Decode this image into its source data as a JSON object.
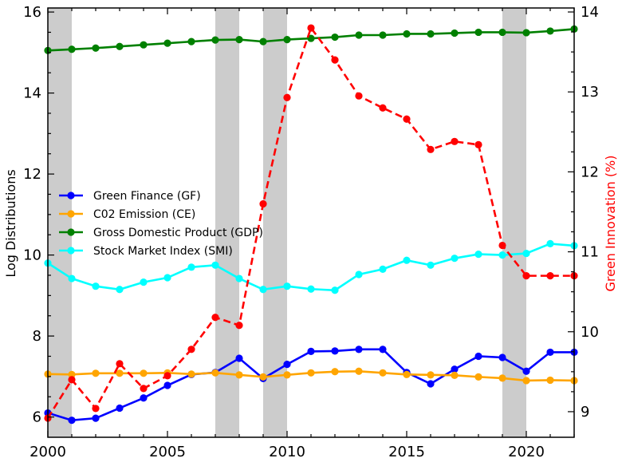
{
  "chart_data": {
    "type": "line",
    "title": "",
    "xlabel": "",
    "ylabel_left": "Log Distributions",
    "ylabel_right": "Green Innovation (%)",
    "xlim": [
      2000,
      2022
    ],
    "ylim_left": [
      5.5,
      16.1
    ],
    "ylim_right": [
      8.68,
      14.05
    ],
    "x_ticks": [
      2000,
      2005,
      2010,
      2015,
      2020
    ],
    "y_ticks_left": [
      6,
      8,
      10,
      12,
      14,
      16
    ],
    "y_ticks_right": [
      9,
      10,
      11,
      12,
      13,
      14
    ],
    "grid": false,
    "legend_position": "center-left",
    "shaded_periods": [
      [
        2000,
        2001
      ],
      [
        2007,
        2008
      ],
      [
        2009,
        2010
      ],
      [
        2019,
        2020
      ]
    ],
    "shade_color": "#cccccc",
    "x": [
      2000,
      2001,
      2002,
      2003,
      2004,
      2005,
      2006,
      2007,
      2008,
      2009,
      2010,
      2011,
      2012,
      2013,
      2014,
      2015,
      2016,
      2017,
      2018,
      2019,
      2020,
      2021,
      2022
    ],
    "series": [
      {
        "name": "Green Finance (GF)",
        "axis": "left",
        "color": "#0000ff",
        "style": "solid",
        "values": [
          6.1,
          5.92,
          5.97,
          6.22,
          6.47,
          6.78,
          7.05,
          7.1,
          7.45,
          6.95,
          7.3,
          7.62,
          7.63,
          7.67,
          7.67,
          7.1,
          6.82,
          7.18,
          7.5,
          7.47,
          7.13,
          7.6,
          7.6
        ]
      },
      {
        "name": "C02 Emission (CE)",
        "axis": "left",
        "color": "#ffa500",
        "style": "solid",
        "values": [
          7.06,
          7.05,
          7.08,
          7.08,
          7.08,
          7.09,
          7.06,
          7.09,
          7.04,
          6.99,
          7.04,
          7.09,
          7.12,
          7.13,
          7.09,
          7.05,
          7.04,
          7.03,
          6.99,
          6.96,
          6.9,
          6.91,
          6.9
        ]
      },
      {
        "name": "Gross Domestic Product (GDP)",
        "axis": "left",
        "color": "#008000",
        "style": "solid",
        "values": [
          15.05,
          15.08,
          15.11,
          15.15,
          15.19,
          15.23,
          15.27,
          15.31,
          15.32,
          15.27,
          15.32,
          15.35,
          15.38,
          15.43,
          15.43,
          15.46,
          15.46,
          15.48,
          15.5,
          15.5,
          15.49,
          15.53,
          15.58
        ]
      },
      {
        "name": "Stock Market Index (SMI)",
        "axis": "left",
        "color": "#00ffff",
        "style": "solid",
        "values": [
          9.8,
          9.42,
          9.23,
          9.15,
          9.33,
          9.44,
          9.7,
          9.75,
          9.42,
          9.15,
          9.23,
          9.16,
          9.13,
          9.52,
          9.65,
          9.87,
          9.75,
          9.92,
          10.02,
          10.0,
          10.04,
          10.28,
          10.23
        ]
      },
      {
        "name": "Green Innovation",
        "axis": "right",
        "color": "#ff0000",
        "style": "dashed",
        "values": [
          8.92,
          9.4,
          9.04,
          9.6,
          9.29,
          9.45,
          9.78,
          10.18,
          10.08,
          11.6,
          12.93,
          13.8,
          13.4,
          12.95,
          12.8,
          12.66,
          12.28,
          12.38,
          12.34,
          11.08,
          10.7,
          10.7,
          10.7
        ]
      }
    ],
    "legend": [
      {
        "label": "Green Finance (GF)",
        "color": "#0000ff"
      },
      {
        "label": "C02 Emission (CE)",
        "color": "#ffa500"
      },
      {
        "label": "Gross Domestic Product (GDP)",
        "color": "#008000"
      },
      {
        "label": "Stock Market Index (SMI)",
        "color": "#00ffff"
      }
    ]
  }
}
